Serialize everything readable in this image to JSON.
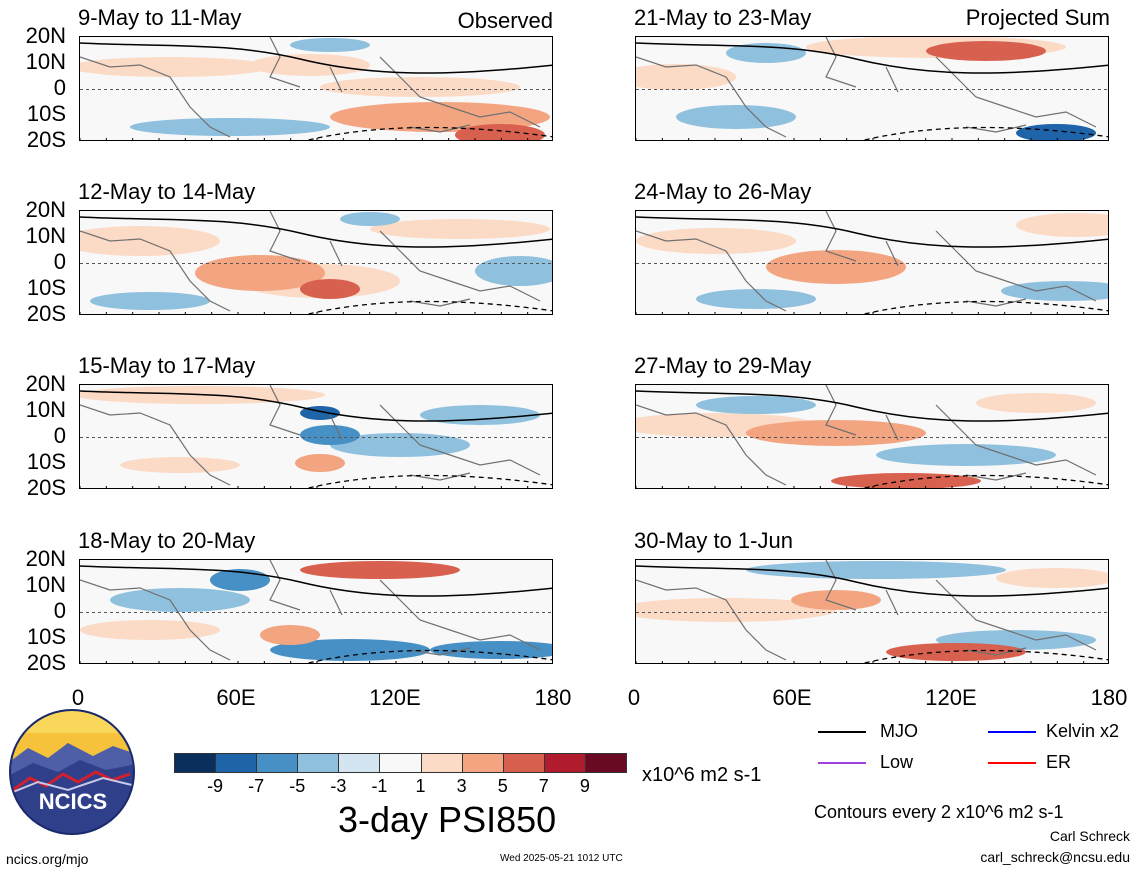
{
  "chart_data": {
    "type": "heatmap",
    "variable": "3-day PSI850",
    "units": "x10^6 m2 s-1",
    "contour_note": "Contours every 2 x10^6 m2 s-1",
    "columns": [
      {
        "label": "Observed"
      },
      {
        "label": "Projected Sum"
      }
    ],
    "panels": [
      {
        "title": "9-May to 11-May"
      },
      {
        "title": "12-May to 14-May"
      },
      {
        "title": "15-May to 17-May"
      },
      {
        "title": "18-May to 20-May"
      },
      {
        "title": "21-May to 23-May"
      },
      {
        "title": "24-May to 26-May"
      },
      {
        "title": "27-May to 29-May"
      },
      {
        "title": "30-May to 1-Jun"
      }
    ],
    "y_ticks": [
      "20N",
      "10N",
      "0",
      "10S",
      "20S"
    ],
    "x_ticks": [
      "0",
      "60E",
      "120E",
      "180"
    ],
    "xlim": [
      0,
      180
    ],
    "ylim": [
      -20,
      20
    ],
    "colorbar": {
      "tick_labels": [
        "-9",
        "-7",
        "-5",
        "-3",
        "-1",
        "1",
        "3",
        "5",
        "7",
        "9"
      ],
      "colors": [
        "#0b2f5c",
        "#1f63a8",
        "#4690c6",
        "#8fc0de",
        "#d2e5f0",
        "#f8f8f8",
        "#fbdac6",
        "#f3a582",
        "#d8604e",
        "#b01c2e",
        "#6a0a22"
      ]
    },
    "legend": [
      {
        "name": "MJO",
        "color": "#000000"
      },
      {
        "name": "Kelvin x2",
        "color": "#0000ff"
      },
      {
        "name": "Low",
        "color": "#a040e0"
      },
      {
        "name": "ER",
        "color": "#ff0000"
      }
    ]
  },
  "footer": {
    "logo_text": "NCICS",
    "site": "ncics.org/mjo",
    "timestamp": "Wed 2025-05-21 1012 UTC",
    "author": "Carl Schreck",
    "email": "carl_schreck@ncsu.edu"
  }
}
